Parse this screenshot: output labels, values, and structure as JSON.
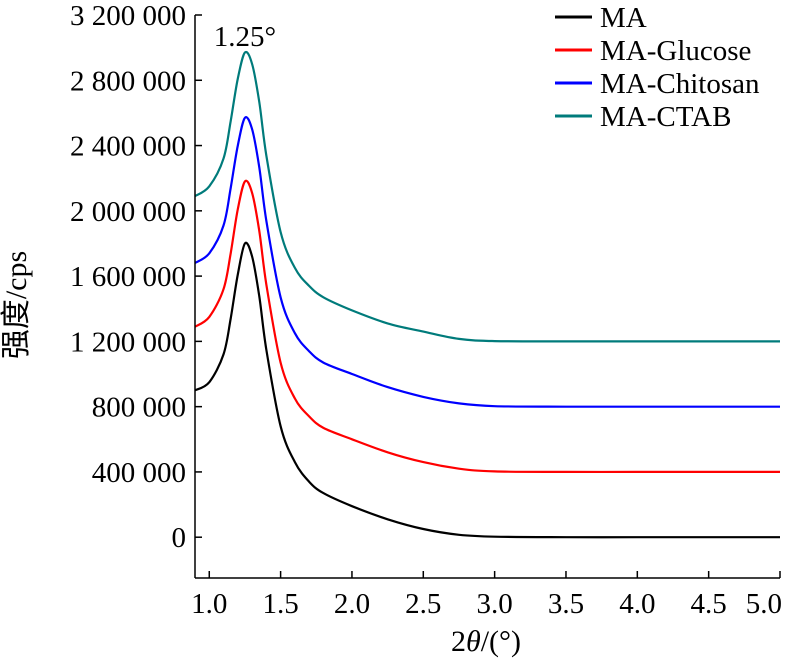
{
  "chart_data": {
    "type": "line",
    "title": "",
    "xlabel_prefix": "2",
    "xlabel_symbol": "θ",
    "xlabel_suffix": "/(°)",
    "ylabel": "强度/cps",
    "xlim": [
      0.9,
      5.0
    ],
    "ylim": [
      -250000,
      3200000
    ],
    "xticks": [
      1.0,
      1.5,
      2.0,
      2.5,
      3.0,
      3.5,
      4.0,
      4.5,
      5.0
    ],
    "xtick_labels": [
      "1.0",
      "1.5",
      "2.0",
      "2.5",
      "3.0",
      "3.5",
      "4.0",
      "4.5",
      "5.0"
    ],
    "yticks": [
      0,
      400000,
      800000,
      1200000,
      1600000,
      2000000,
      2400000,
      2800000,
      3200000
    ],
    "ytick_labels": [
      "0",
      "400 000",
      "800 000",
      "1 200 000",
      "1 600 000",
      "2 000 000",
      "2 400 000",
      "2 800 000",
      "3 200 000"
    ],
    "grid": false,
    "legend_position": "top-right",
    "annotations": [
      {
        "text": "1.25°",
        "x": 1.25,
        "y": 3070000
      }
    ],
    "x": [
      0.9,
      1.0,
      1.1,
      1.15,
      1.2,
      1.25,
      1.3,
      1.35,
      1.4,
      1.5,
      1.6,
      1.7,
      1.8,
      2.0,
      2.25,
      2.5,
      2.75,
      3.0,
      3.5,
      4.0,
      4.5,
      5.0
    ],
    "series": [
      {
        "name": "MA",
        "color": "#000000",
        "values": [
          900000,
          950000,
          1120000,
          1340000,
          1610000,
          1800000,
          1720000,
          1480000,
          1150000,
          680000,
          460000,
          340000,
          270000,
          190000,
          110000,
          50000,
          15000,
          3000,
          0,
          0,
          0,
          0
        ]
      },
      {
        "name": "MA-Glucose",
        "color": "#ff0000",
        "values": [
          1290000,
          1350000,
          1520000,
          1740000,
          2010000,
          2180000,
          2110000,
          1880000,
          1550000,
          1070000,
          850000,
          740000,
          670000,
          600000,
          520000,
          460000,
          420000,
          403000,
          400000,
          400000,
          400000,
          400000
        ]
      },
      {
        "name": "MA-Chitosan",
        "color": "#0000ff",
        "values": [
          1680000,
          1740000,
          1910000,
          2140000,
          2400000,
          2570000,
          2500000,
          2270000,
          1940000,
          1470000,
          1250000,
          1140000,
          1070000,
          1000000,
          920000,
          860000,
          820000,
          803000,
          800000,
          800000,
          800000,
          800000
        ]
      },
      {
        "name": "MA-CTAB",
        "color": "#007b7b",
        "values": [
          2090000,
          2150000,
          2320000,
          2550000,
          2810000,
          2970000,
          2900000,
          2670000,
          2340000,
          1870000,
          1650000,
          1540000,
          1470000,
          1390000,
          1310000,
          1260000,
          1215000,
          1202000,
          1200000,
          1200000,
          1200000,
          1200000
        ]
      }
    ]
  }
}
